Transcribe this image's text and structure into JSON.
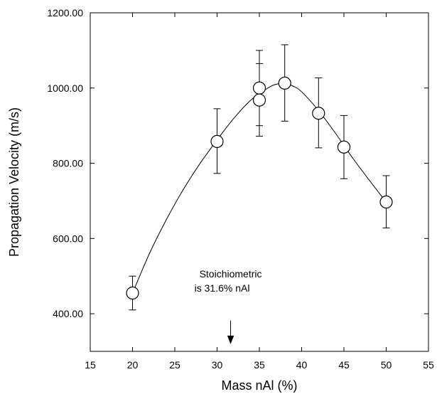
{
  "chart_data": {
    "type": "scatter",
    "xlabel": "Mass nAl (%)",
    "ylabel": "Propagation Velocity (m/s)",
    "xlim": [
      15,
      55
    ],
    "ylim": [
      300,
      1200
    ],
    "x_ticks": [
      15,
      20,
      25,
      30,
      35,
      40,
      45,
      50,
      55
    ],
    "y_ticks": [
      400,
      600,
      800,
      1000,
      1200
    ],
    "x_tick_labels": [
      "15",
      "20",
      "25",
      "30",
      "35",
      "40",
      "45",
      "50",
      "55"
    ],
    "y_tick_labels": [
      "400.00",
      "600.00",
      "800.00",
      "1000.00",
      "1200.00"
    ],
    "grid": false,
    "legend": "none",
    "points": [
      {
        "x": 20,
        "y": 455,
        "err_low": 410,
        "err_high": 500
      },
      {
        "x": 30,
        "y": 858,
        "err_low": 773,
        "err_high": 945
      },
      {
        "x": 35,
        "y": 1000,
        "err_low": 900,
        "err_high": 1100
      },
      {
        "x": 35,
        "y": 968,
        "err_low": 872,
        "err_high": 1065
      },
      {
        "x": 38,
        "y": 1013,
        "err_low": 912,
        "err_high": 1115
      },
      {
        "x": 42,
        "y": 933,
        "err_low": 841,
        "err_high": 1027
      },
      {
        "x": 45,
        "y": 843,
        "err_low": 759,
        "err_high": 927
      },
      {
        "x": 50,
        "y": 697,
        "err_low": 628,
        "err_high": 767
      }
    ],
    "fit_curve": {
      "x": [
        20,
        22,
        24,
        26,
        28,
        30,
        32,
        34,
        36,
        37,
        38,
        39,
        40,
        42,
        44,
        46,
        48,
        50
      ],
      "y": [
        455,
        560,
        650,
        730,
        800,
        862,
        920,
        968,
        1000,
        1010,
        1012,
        1005,
        990,
        940,
        880,
        815,
        755,
        697
      ]
    },
    "annotation": {
      "lines": [
        "Stoichiometric",
        "is 31.6% nAl"
      ],
      "arrow_x": 31.6,
      "arrow_y_from": 382,
      "arrow_y_to": 322
    }
  }
}
